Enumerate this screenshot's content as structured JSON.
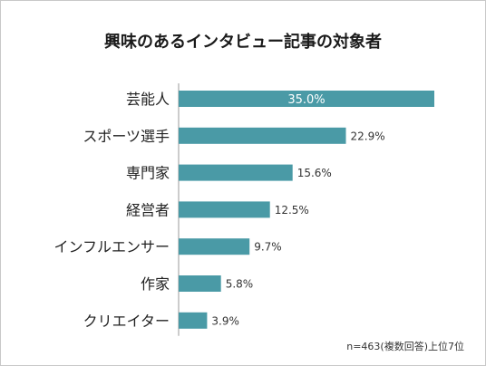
{
  "chart_data": {
    "type": "bar",
    "orientation": "horizontal",
    "title": "興味のあるインタビュー記事の対象者",
    "categories": [
      "芸能人",
      "スポーツ選手",
      "専門家",
      "経営者",
      "インフルエンサー",
      "作家",
      "クリエイター"
    ],
    "values": [
      35.0,
      22.9,
      15.6,
      12.5,
      9.7,
      5.8,
      3.9
    ],
    "value_labels": [
      "35.0%",
      "22.9%",
      "15.6%",
      "12.5%",
      "9.7%",
      "5.8%",
      "3.9%"
    ],
    "unit": "%",
    "xlim": [
      0,
      35.0
    ],
    "grid": false,
    "legend": "none",
    "note": "n=463(複数回答)上位7位",
    "colors": {
      "bar": "#4a9aa6",
      "axis": "#9a9a9a",
      "inside_label": "#ffffff",
      "text": "#222222"
    }
  }
}
